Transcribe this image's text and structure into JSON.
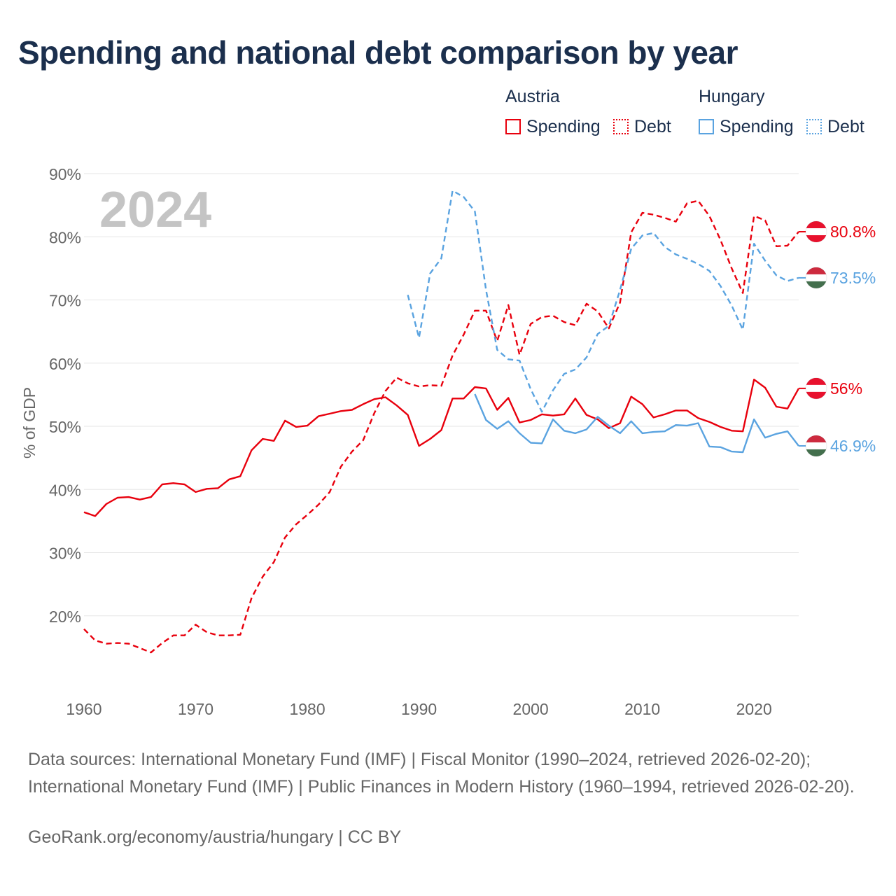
{
  "title": "Spending and national debt comparison by year",
  "legend": {
    "groups": [
      {
        "country": "Austria",
        "color": "#e8000d",
        "items": [
          {
            "label": "Spending",
            "style": "solid"
          },
          {
            "label": "Debt",
            "style": "dotted"
          }
        ]
      },
      {
        "country": "Hungary",
        "color": "#5aa3e0",
        "items": [
          {
            "label": "Spending",
            "style": "solid"
          },
          {
            "label": "Debt",
            "style": "dotted"
          }
        ]
      }
    ]
  },
  "chart_data": {
    "type": "line",
    "year_watermark": "2024",
    "ylabel": "% of GDP",
    "xlabel": "",
    "xlim": [
      1960,
      2024
    ],
    "ylim": [
      10,
      90
    ],
    "x_ticks": [
      1960,
      1970,
      1980,
      1990,
      2000,
      2010,
      2020
    ],
    "y_ticks": [
      20,
      30,
      40,
      50,
      60,
      70,
      80,
      90
    ],
    "y_tick_labels": [
      "20%",
      "30%",
      "40%",
      "50%",
      "60%",
      "70%",
      "80%",
      "90%"
    ],
    "grid": true,
    "series": [
      {
        "name": "Austria Spending",
        "country": "Austria",
        "metric": "Spending",
        "color": "#e8000d",
        "dash": "solid",
        "end_label": "56%",
        "x": [
          1960,
          1961,
          1962,
          1963,
          1964,
          1965,
          1966,
          1967,
          1968,
          1969,
          1970,
          1971,
          1972,
          1973,
          1974,
          1975,
          1976,
          1977,
          1978,
          1979,
          1980,
          1981,
          1982,
          1983,
          1984,
          1985,
          1986,
          1987,
          1988,
          1989,
          1990,
          1991,
          1992,
          1993,
          1994,
          1995,
          1996,
          1997,
          1998,
          1999,
          2000,
          2001,
          2002,
          2003,
          2004,
          2005,
          2006,
          2007,
          2008,
          2009,
          2010,
          2011,
          2012,
          2013,
          2014,
          2015,
          2016,
          2017,
          2018,
          2019,
          2020,
          2021,
          2022,
          2023,
          2024
        ],
        "values": [
          36.4,
          35.8,
          37.7,
          38.7,
          38.8,
          38.4,
          38.8,
          40.8,
          41.0,
          40.8,
          39.6,
          40.1,
          40.2,
          41.6,
          42.1,
          46.2,
          48.0,
          47.7,
          50.9,
          49.9,
          50.1,
          51.6,
          52.0,
          52.4,
          52.6,
          53.5,
          54.3,
          54.6,
          53.3,
          51.8,
          46.9,
          48.0,
          49.4,
          54.4,
          54.4,
          56.2,
          56.0,
          52.6,
          54.5,
          50.6,
          51.0,
          51.9,
          51.7,
          51.9,
          54.4,
          51.8,
          51.1,
          49.7,
          50.5,
          54.7,
          53.5,
          51.4,
          51.9,
          52.5,
          52.5,
          51.3,
          50.7,
          49.9,
          49.3,
          49.2,
          57.4,
          56.1,
          53.1,
          52.8,
          56.0
        ]
      },
      {
        "name": "Austria Debt",
        "country": "Austria",
        "metric": "Debt",
        "color": "#e8000d",
        "dash": "dashed",
        "end_label": "80.8%",
        "x": [
          1960,
          1961,
          1962,
          1963,
          1964,
          1965,
          1966,
          1967,
          1968,
          1969,
          1970,
          1971,
          1972,
          1973,
          1974,
          1975,
          1976,
          1977,
          1978,
          1979,
          1980,
          1981,
          1982,
          1983,
          1984,
          1985,
          1986,
          1987,
          1988,
          1989,
          1990,
          1991,
          1992,
          1993,
          1994,
          1995,
          1996,
          1997,
          1998,
          1999,
          2000,
          2001,
          2002,
          2003,
          2004,
          2005,
          2006,
          2007,
          2008,
          2009,
          2010,
          2011,
          2012,
          2013,
          2014,
          2015,
          2016,
          2017,
          2018,
          2019,
          2020,
          2021,
          2022,
          2023,
          2024
        ],
        "values": [
          17.9,
          16.1,
          15.6,
          15.7,
          15.6,
          14.9,
          14.2,
          15.7,
          16.9,
          16.9,
          18.6,
          17.4,
          16.9,
          16.9,
          17.0,
          22.8,
          26.2,
          28.5,
          32.4,
          34.5,
          36.0,
          37.6,
          39.6,
          43.6,
          46.0,
          47.8,
          52.1,
          55.6,
          57.7,
          56.8,
          56.3,
          56.5,
          56.4,
          61.2,
          64.5,
          68.3,
          68.3,
          63.5,
          69.2,
          61.3,
          66.2,
          67.3,
          67.5,
          66.5,
          66.0,
          69.4,
          68.2,
          65.5,
          69.6,
          80.7,
          83.8,
          83.5,
          83.0,
          82.4,
          85.3,
          85.7,
          83.3,
          79.5,
          75.0,
          71.1,
          83.3,
          82.6,
          78.5,
          78.6,
          80.8
        ]
      },
      {
        "name": "Hungary Spending",
        "country": "Hungary",
        "metric": "Spending",
        "color": "#5aa3e0",
        "dash": "solid",
        "end_label": "46.9%",
        "x": [
          1995,
          1996,
          1997,
          1998,
          1999,
          2000,
          2001,
          2002,
          2003,
          2004,
          2005,
          2006,
          2007,
          2008,
          2009,
          2010,
          2011,
          2012,
          2013,
          2014,
          2015,
          2016,
          2017,
          2018,
          2019,
          2020,
          2021,
          2022,
          2023,
          2024
        ],
        "values": [
          55.1,
          51.0,
          49.6,
          50.8,
          48.9,
          47.4,
          47.3,
          51.1,
          49.3,
          48.9,
          49.5,
          51.5,
          50.1,
          48.9,
          50.8,
          48.9,
          49.1,
          49.2,
          50.2,
          50.1,
          50.5,
          46.8,
          46.7,
          46.0,
          45.9,
          51.1,
          48.2,
          48.8,
          49.2,
          46.9
        ]
      },
      {
        "name": "Hungary Debt",
        "country": "Hungary",
        "metric": "Debt",
        "color": "#5aa3e0",
        "dash": "dashed",
        "end_label": "73.5%",
        "x": [
          1989,
          1990,
          1991,
          1992,
          1993,
          1994,
          1995,
          1996,
          1997,
          1998,
          1999,
          2000,
          2001,
          2002,
          2003,
          2004,
          2005,
          2006,
          2007,
          2008,
          2009,
          2010,
          2011,
          2012,
          2013,
          2014,
          2015,
          2016,
          2017,
          2018,
          2019,
          2020,
          2021,
          2022,
          2023,
          2024
        ],
        "values": [
          70.8,
          64.0,
          74.2,
          76.6,
          87.3,
          86.3,
          84.0,
          71.6,
          62.1,
          60.6,
          60.4,
          55.9,
          52.3,
          55.7,
          58.3,
          59.0,
          60.9,
          64.6,
          65.9,
          71.6,
          78.1,
          80.2,
          80.6,
          78.4,
          77.2,
          76.5,
          75.7,
          74.6,
          72.2,
          69.1,
          65.3,
          78.9,
          76.2,
          73.9,
          73.0,
          73.5
        ]
      }
    ]
  },
  "sources_text": "Data sources: International Monetary Fund (IMF) | Fiscal Monitor (1990–2024, retrieved 2026-02-20); International Monetary Fund (IMF) | Public Finances in Modern History (1960–1994, retrieved 2026-02-20).",
  "credit_text": "GeoRank.org/economy/austria/hungary | CC BY"
}
